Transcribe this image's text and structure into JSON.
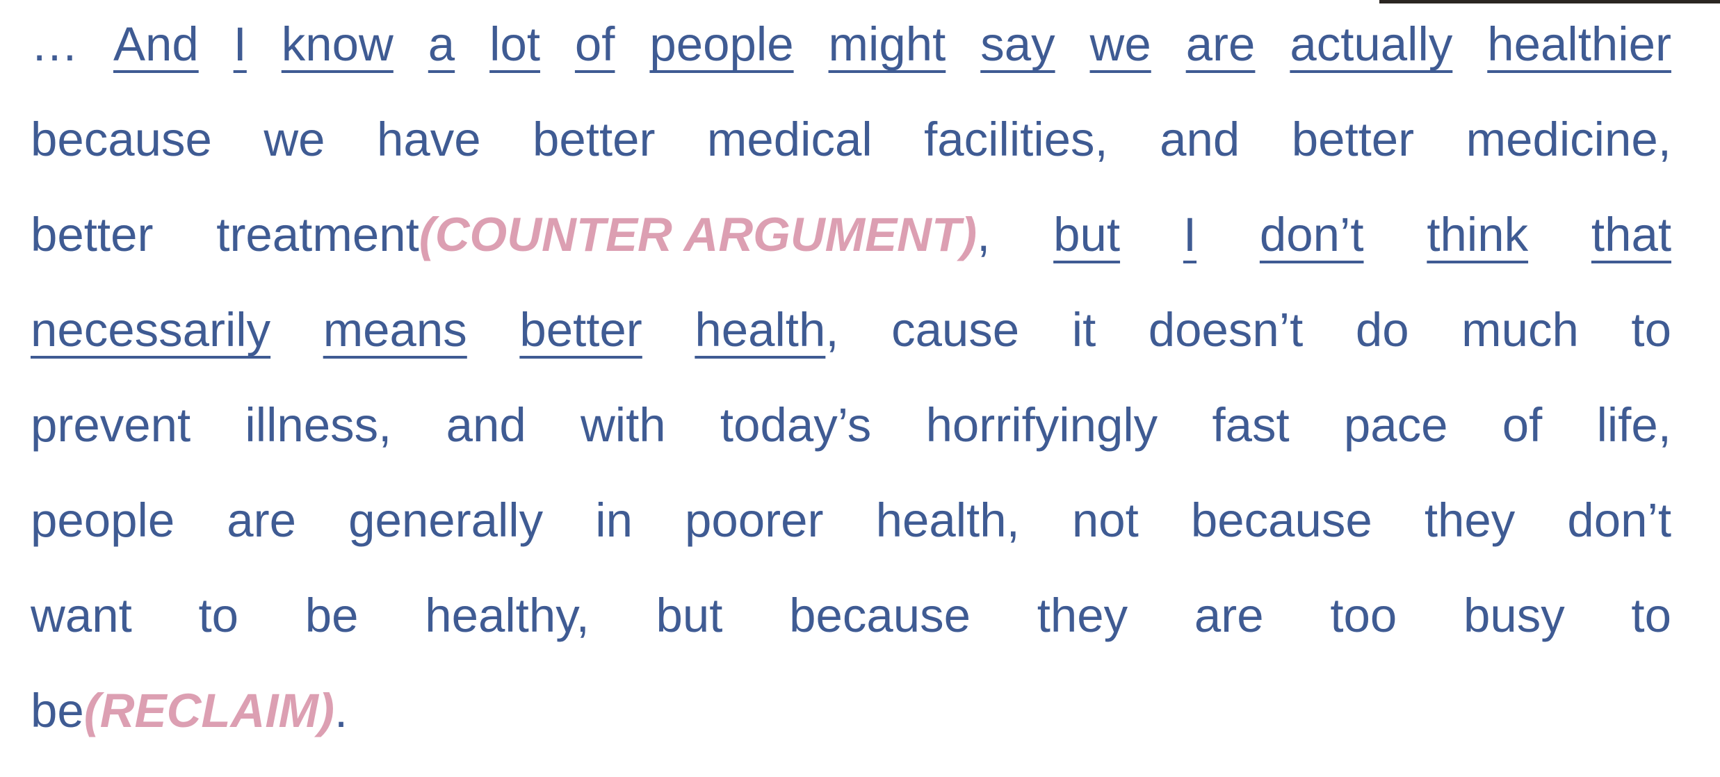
{
  "passage": {
    "l1": [
      "…",
      "And",
      "I",
      "know",
      "a",
      "lot",
      "of",
      "people",
      "might",
      "say",
      "we",
      "are",
      "actually",
      "healthier"
    ],
    "l2": [
      "because",
      "we",
      "have",
      "better",
      "medical",
      "facilities,",
      "and",
      "better",
      "medicine,"
    ],
    "l3": {
      "w1": "better",
      "w2": "treatment",
      "tag": "(COUNTER ARGUMENT)",
      "comma": ",",
      "tail": [
        "but",
        "I",
        "don’t",
        "think",
        "that"
      ]
    },
    "l4": {
      "head": [
        "necessarily",
        "means",
        "better",
        "health"
      ],
      "comma": ",",
      "tail": [
        "cause",
        "it",
        "doesn’t",
        "do",
        "much",
        "to"
      ]
    },
    "l5": [
      "prevent",
      "illness,",
      "and",
      "with",
      "today’s",
      "horrifyingly",
      "fast",
      "pace",
      "of",
      "life,"
    ],
    "l6": [
      "people",
      "are",
      "generally",
      "in",
      "poorer",
      "health,",
      "not",
      "because",
      "they",
      "don’t"
    ],
    "l7": [
      "want",
      "to",
      "be",
      "healthy,",
      "but",
      "because",
      "they",
      "are",
      "too",
      "busy",
      "to"
    ],
    "l8": {
      "word": "be",
      "tag": "(RECLAIM)",
      "end": "."
    }
  },
  "colors": {
    "text": "#3f5b93",
    "annotation": "#dc9fb2"
  }
}
